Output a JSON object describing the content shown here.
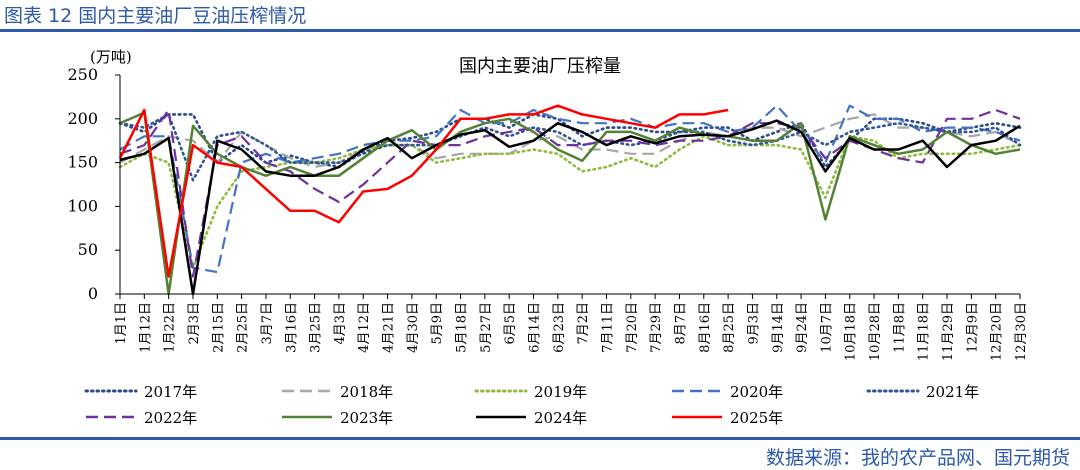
{
  "figure": {
    "title": "图表 12 国内主要油厂豆油压榨情况",
    "source": "数据来源：我的农产品网、国元期货"
  },
  "colors": {
    "brand": "#2c5aa8",
    "s2017": "#2b4a8c",
    "s2018": "#a6a6a6",
    "s2019": "#8fbc3f",
    "s2020": "#4472c4",
    "s2021": "#2e5597",
    "s2022": "#7030a0",
    "s2023": "#548235",
    "s2024": "#000000",
    "s2025": "#ff0000"
  },
  "chart_data": {
    "type": "line",
    "title": "国内主要油厂压榨量",
    "ylabel": "(万吨)",
    "xlabel": "",
    "ylim": [
      0,
      250
    ],
    "yticks": [
      0,
      50,
      100,
      150,
      200,
      250
    ],
    "legend_position": "bottom",
    "categories": [
      "1月1日",
      "1月12日",
      "1月22日",
      "2月3日",
      "2月15日",
      "2月25日",
      "3月7日",
      "3月16日",
      "3月25日",
      "4月3日",
      "4月12日",
      "4月21日",
      "4月30日",
      "5月9日",
      "5月18日",
      "5月27日",
      "6月5日",
      "6月14日",
      "6月23日",
      "7月2日",
      "7月11日",
      "7月20日",
      "7月29日",
      "8月7日",
      "8月16日",
      "8月25日",
      "9月3日",
      "9月14日",
      "9月24日",
      "10月7日",
      "10月18日",
      "10月28日",
      "11月8日",
      "11月18日",
      "11月29日",
      "12月9日",
      "12月20日",
      "12月30日"
    ],
    "series": [
      {
        "name": "2017年",
        "style": "dotted",
        "color_key": "s2017",
        "x": [
          0,
          1,
          2,
          3,
          4,
          5,
          6,
          7,
          8,
          9,
          10,
          11,
          12,
          13,
          14,
          15,
          16,
          17,
          18,
          19,
          20,
          21,
          22,
          23,
          24,
          25,
          26,
          27,
          28,
          29,
          30,
          31,
          32,
          33,
          34,
          35,
          36,
          37
        ],
        "values": [
          195,
          185,
          205,
          205,
          150,
          170,
          150,
          158,
          150,
          145,
          162,
          175,
          178,
          185,
          200,
          200,
          190,
          205,
          200,
          180,
          190,
          190,
          185,
          185,
          190,
          190,
          175,
          185,
          195,
          145,
          175,
          200,
          200,
          195,
          185,
          190,
          195,
          190
        ]
      },
      {
        "name": "2018年",
        "style": "dashed",
        "color_key": "s2018",
        "x": [
          0,
          1,
          2,
          3,
          4,
          5,
          6,
          7,
          8,
          9,
          10,
          11,
          12,
          13,
          14,
          15,
          16,
          17,
          18,
          19,
          20,
          21,
          22,
          23,
          24,
          25,
          26,
          27,
          28,
          29,
          30,
          31,
          32,
          33,
          34,
          35,
          36,
          37
        ],
        "values": [
          150,
          165,
          180,
          175,
          150,
          185,
          170,
          155,
          145,
          150,
          165,
          170,
          170,
          155,
          160,
          160,
          160,
          175,
          180,
          165,
          165,
          160,
          160,
          175,
          185,
          180,
          190,
          190,
          180,
          190,
          200,
          205,
          190,
          190,
          185,
          180,
          185,
          170
        ]
      },
      {
        "name": "2019年",
        "style": "dotted",
        "color_key": "s2019",
        "x": [
          0,
          1,
          2,
          3,
          4,
          5,
          6,
          7,
          8,
          9,
          10,
          11,
          12,
          13,
          14,
          15,
          16,
          17,
          18,
          19,
          20,
          21,
          22,
          23,
          24,
          25,
          26,
          27,
          28,
          29,
          30,
          31,
          32,
          33,
          34,
          35,
          36,
          37
        ],
        "values": [
          145,
          160,
          150,
          30,
          100,
          140,
          145,
          150,
          150,
          155,
          165,
          170,
          170,
          150,
          155,
          160,
          160,
          165,
          160,
          140,
          145,
          155,
          145,
          165,
          180,
          170,
          170,
          170,
          165,
          110,
          180,
          175,
          155,
          160,
          160,
          160,
          165,
          170
        ]
      },
      {
        "name": "2020年",
        "style": "dashed",
        "color_key": "s2020",
        "x": [
          0,
          1,
          2,
          3,
          4,
          5,
          6,
          7,
          8,
          9,
          10,
          11,
          12,
          13,
          14,
          15,
          16,
          17,
          18,
          19,
          20,
          21,
          22,
          23,
          24,
          25,
          26,
          27,
          28,
          29,
          30,
          31,
          32,
          33,
          34,
          35,
          36,
          37
        ],
        "values": [
          165,
          180,
          180,
          30,
          25,
          150,
          160,
          150,
          155,
          160,
          170,
          175,
          175,
          180,
          210,
          195,
          195,
          210,
          200,
          195,
          195,
          200,
          190,
          195,
          195,
          185,
          190,
          215,
          185,
          150,
          215,
          200,
          200,
          185,
          190,
          190,
          185,
          175
        ]
      },
      {
        "name": "2021年",
        "style": "dotted",
        "color_key": "s2021",
        "x": [
          0,
          1,
          2,
          3,
          4,
          5,
          6,
          7,
          8,
          9,
          10,
          11,
          12,
          13,
          14,
          15,
          16,
          17,
          18,
          19,
          20,
          21,
          22,
          23,
          24,
          25,
          26,
          27,
          28,
          29,
          30,
          31,
          32,
          33,
          34,
          35,
          36,
          37
        ],
        "values": [
          195,
          190,
          205,
          130,
          180,
          185,
          170,
          150,
          150,
          150,
          160,
          170,
          170,
          170,
          180,
          190,
          180,
          190,
          185,
          170,
          175,
          170,
          175,
          185,
          185,
          175,
          170,
          175,
          185,
          170,
          185,
          190,
          195,
          190,
          185,
          185,
          190,
          170
        ]
      },
      {
        "name": "2022年",
        "style": "dashed",
        "color_key": "s2022",
        "x": [
          0,
          1,
          2,
          3,
          4,
          5,
          6,
          7,
          8,
          9,
          10,
          11,
          12,
          13,
          14,
          15,
          16,
          17,
          18,
          19,
          20,
          21,
          22,
          23,
          24,
          25,
          26,
          27,
          28,
          29,
          30,
          31,
          32,
          33,
          34,
          35,
          36,
          37
        ],
        "values": [
          160,
          170,
          210,
          20,
          170,
          180,
          150,
          140,
          120,
          105,
          125,
          150,
          175,
          170,
          170,
          180,
          185,
          190,
          170,
          170,
          175,
          175,
          170,
          175,
          175,
          180,
          195,
          195,
          190,
          155,
          175,
          165,
          155,
          150,
          200,
          200,
          210,
          200
        ]
      },
      {
        "name": "2023年",
        "style": "solid",
        "color_key": "s2023",
        "x": [
          0,
          1,
          2,
          3,
          4,
          5,
          6,
          7,
          8,
          9,
          10,
          11,
          12,
          13,
          14,
          15,
          16,
          17,
          18,
          19,
          20,
          21,
          22,
          23,
          24,
          25,
          26,
          27,
          28,
          29,
          30,
          31,
          32,
          33,
          34,
          35,
          36,
          37
        ],
        "values": [
          195,
          207,
          0,
          192,
          160,
          145,
          135,
          145,
          135,
          135,
          155,
          175,
          187,
          165,
          185,
          195,
          200,
          185,
          165,
          152,
          185,
          185,
          175,
          190,
          182,
          180,
          175,
          175,
          195,
          85,
          180,
          170,
          160,
          165,
          185,
          170,
          160,
          165
        ]
      },
      {
        "name": "2024年",
        "style": "solid",
        "color_key": "s2024",
        "x": [
          0,
          1,
          2,
          3,
          4,
          5,
          6,
          7,
          8,
          9,
          10,
          11,
          12,
          13,
          14,
          15,
          16,
          17,
          18,
          19,
          20,
          21,
          22,
          23,
          24,
          25,
          26,
          27,
          28,
          29,
          30,
          31,
          32,
          33,
          34,
          35,
          36,
          37
        ],
        "values": [
          153,
          160,
          178,
          0,
          175,
          165,
          140,
          135,
          135,
          145,
          165,
          178,
          155,
          170,
          182,
          187,
          168,
          175,
          195,
          185,
          170,
          180,
          172,
          180,
          182,
          180,
          188,
          198,
          185,
          140,
          178,
          165,
          165,
          175,
          145,
          170,
          175,
          192
        ]
      },
      {
        "name": "2025年",
        "style": "solid",
        "color_key": "s2025",
        "x": [
          0,
          1,
          2,
          3,
          4,
          5,
          6,
          7,
          8,
          9,
          10,
          11,
          12,
          13,
          14,
          15,
          16,
          17,
          18,
          19,
          20,
          21,
          22,
          23,
          24,
          25
        ],
        "values": [
          155,
          210,
          20,
          170,
          150,
          145,
          120,
          95,
          95,
          82,
          117,
          120,
          135,
          165,
          200,
          200,
          205,
          205,
          215,
          205,
          200,
          195,
          190,
          205,
          205,
          210
        ]
      }
    ]
  }
}
